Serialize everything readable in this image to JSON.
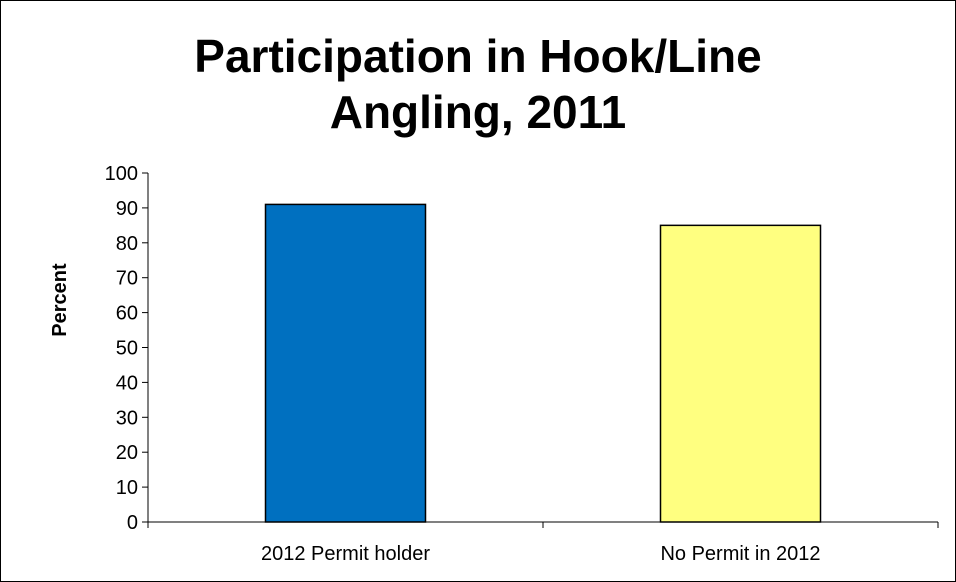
{
  "chart_data": {
    "type": "bar",
    "title_lines": [
      "Participation in Hook/Line",
      "Angling, 2011"
    ],
    "xlabel": "",
    "ylabel": "Percent",
    "categories": [
      "2012 Permit holder",
      "No Permit in 2012"
    ],
    "values": [
      91,
      85
    ],
    "colors": [
      "#0070c0",
      "#ffff80"
    ],
    "ylim": [
      0,
      100
    ],
    "yticks": [
      0,
      10,
      20,
      30,
      40,
      50,
      60,
      70,
      80,
      90,
      100
    ],
    "grid": false,
    "legend": "none"
  }
}
